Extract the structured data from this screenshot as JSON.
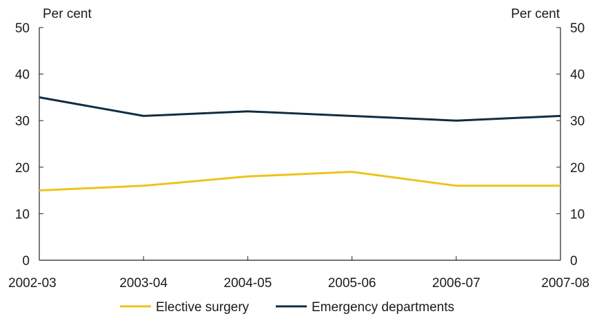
{
  "chart_data": {
    "type": "line",
    "categories": [
      "2002-03",
      "2003-04",
      "2004-05",
      "2005-06",
      "2006-07",
      "2007-08"
    ],
    "series": [
      {
        "name": "Elective surgery",
        "values": [
          15,
          16,
          18,
          19,
          16,
          16
        ],
        "color": "#f0c21a"
      },
      {
        "name": "Emergency departments",
        "values": [
          35,
          31,
          32,
          31,
          30,
          31
        ],
        "color": "#0f2d44"
      }
    ],
    "ylim": [
      0,
      50
    ],
    "yticks": [
      0,
      10,
      20,
      30,
      40,
      50
    ],
    "ylabel_left": "Per cent",
    "ylabel_right": "Per cent",
    "grid": false,
    "legend_position": "bottom"
  }
}
